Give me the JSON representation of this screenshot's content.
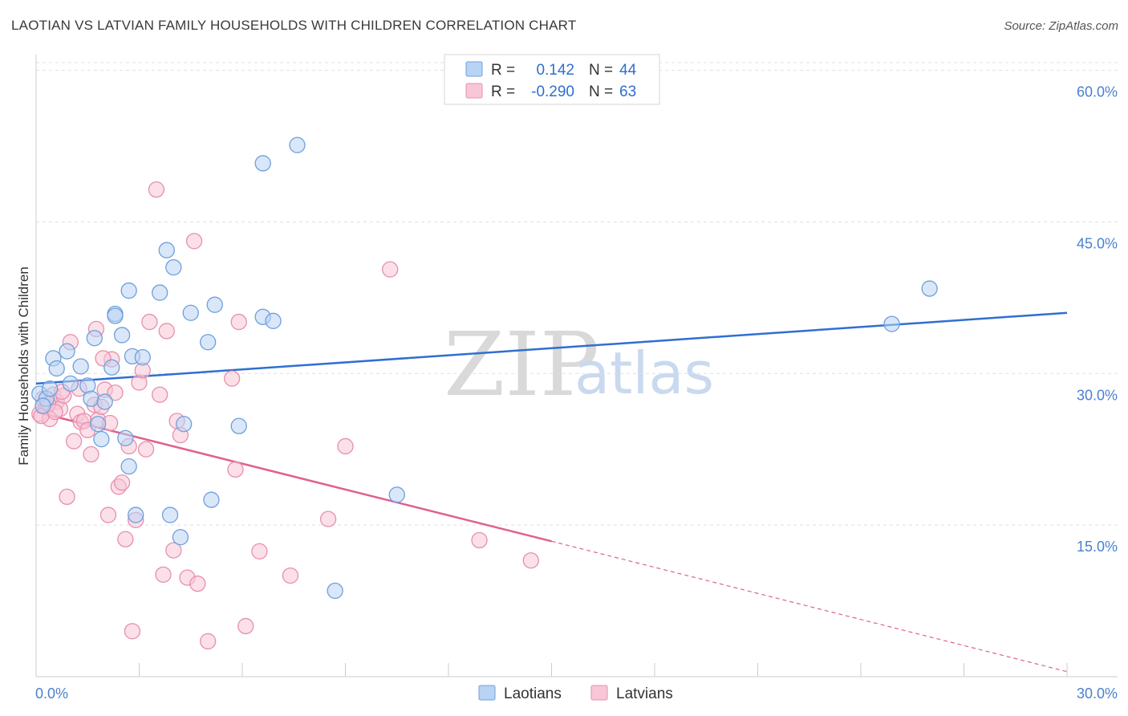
{
  "header": {
    "title": "LAOTIAN VS LATVIAN FAMILY HOUSEHOLDS WITH CHILDREN CORRELATION CHART",
    "source": "Source: ZipAtlas.com"
  },
  "legend": {
    "rows": [
      {
        "r_label": "R =",
        "r_value": "0.142",
        "n_label": "N =",
        "n_value": "44"
      },
      {
        "r_label": "R =",
        "r_value": "-0.290",
        "n_label": "N =",
        "n_value": "63"
      }
    ]
  },
  "bottom_legend": [
    "Laotians",
    "Latvians"
  ],
  "watermark": {
    "zip": "ZIP",
    "atlas": "atlas"
  },
  "colors": {
    "laotians_fill": "#b9d3f4",
    "laotians_stroke": "#6f9fdc",
    "laotians_line": "#2f6fd0",
    "latvians_fill": "#f8c6d6",
    "latvians_stroke": "#e78fad",
    "latvians_line": "#e0608f",
    "tick_label": "#4a80d0",
    "grid": "#e0e0e0"
  },
  "chart_data": {
    "type": "scatter",
    "title": "LAOTIAN VS LATVIAN FAMILY HOUSEHOLDS WITH CHILDREN CORRELATION CHART",
    "xlabel": "",
    "ylabel": "Family Households with Children",
    "xlim": [
      0,
      30
    ],
    "ylim": [
      0,
      61
    ],
    "x_tick_labels": [
      "0.0%",
      "30.0%"
    ],
    "y_ticks": [
      15,
      30,
      45,
      60
    ],
    "y_tick_labels": [
      "15.0%",
      "30.0%",
      "45.0%",
      "60.0%"
    ],
    "grid": true,
    "legend_position": "top-center",
    "series": [
      {
        "name": "Laotians",
        "r": 0.142,
        "n": 44,
        "trend": {
          "x0": 0,
          "y0": 29.0,
          "x1": 30,
          "y1": 36.0
        },
        "points": [
          [
            0.1,
            28.0
          ],
          [
            0.3,
            27.5
          ],
          [
            0.4,
            28.5
          ],
          [
            0.5,
            31.5
          ],
          [
            0.6,
            30.5
          ],
          [
            0.9,
            32.2
          ],
          [
            1.0,
            29.0
          ],
          [
            1.3,
            30.7
          ],
          [
            1.5,
            28.8
          ],
          [
            1.6,
            27.5
          ],
          [
            1.7,
            33.5
          ],
          [
            1.8,
            25.0
          ],
          [
            1.9,
            23.5
          ],
          [
            2.0,
            27.2
          ],
          [
            2.2,
            30.6
          ],
          [
            2.3,
            35.9
          ],
          [
            2.3,
            35.7
          ],
          [
            2.5,
            33.8
          ],
          [
            2.6,
            23.6
          ],
          [
            2.7,
            20.8
          ],
          [
            2.7,
            38.2
          ],
          [
            2.8,
            31.7
          ],
          [
            2.9,
            16.0
          ],
          [
            3.1,
            31.6
          ],
          [
            3.6,
            38.0
          ],
          [
            3.8,
            42.2
          ],
          [
            3.9,
            16.0
          ],
          [
            4.0,
            40.5
          ],
          [
            4.2,
            13.8
          ],
          [
            4.3,
            25.0
          ],
          [
            4.5,
            36.0
          ],
          [
            5.0,
            33.1
          ],
          [
            5.1,
            17.5
          ],
          [
            5.2,
            36.8
          ],
          [
            5.9,
            24.8
          ],
          [
            6.6,
            35.6
          ],
          [
            6.6,
            50.8
          ],
          [
            6.9,
            35.2
          ],
          [
            7.6,
            52.6
          ],
          [
            8.7,
            8.5
          ],
          [
            10.5,
            18.0
          ],
          [
            24.9,
            34.9
          ],
          [
            26.0,
            38.4
          ],
          [
            0.2,
            26.8
          ]
        ]
      },
      {
        "name": "Latvians",
        "r": -0.29,
        "n": 63,
        "trend": {
          "x0": 0,
          "y0": 26.2,
          "x1": 15,
          "y1": 13.4
        },
        "trend_dashed_to": {
          "x": 30,
          "y": 0.5
        },
        "points": [
          [
            0.1,
            26.0
          ],
          [
            0.2,
            27.5
          ],
          [
            0.3,
            26.7
          ],
          [
            0.4,
            25.5
          ],
          [
            0.5,
            27.9
          ],
          [
            0.6,
            27.2
          ],
          [
            0.7,
            26.5
          ],
          [
            0.8,
            27.8
          ],
          [
            0.9,
            17.8
          ],
          [
            1.0,
            33.1
          ],
          [
            1.1,
            23.3
          ],
          [
            1.2,
            26.0
          ],
          [
            1.3,
            25.2
          ],
          [
            1.4,
            25.3
          ],
          [
            1.5,
            24.4
          ],
          [
            1.6,
            22.0
          ],
          [
            1.7,
            26.9
          ],
          [
            1.8,
            25.4
          ],
          [
            1.9,
            26.7
          ],
          [
            2.0,
            28.4
          ],
          [
            2.1,
            16.0
          ],
          [
            2.2,
            31.4
          ],
          [
            2.3,
            28.1
          ],
          [
            2.4,
            18.8
          ],
          [
            2.5,
            19.2
          ],
          [
            2.6,
            13.6
          ],
          [
            2.7,
            22.8
          ],
          [
            2.8,
            4.5
          ],
          [
            2.9,
            15.5
          ],
          [
            3.0,
            29.1
          ],
          [
            3.1,
            30.3
          ],
          [
            3.2,
            22.5
          ],
          [
            3.3,
            35.1
          ],
          [
            3.5,
            48.2
          ],
          [
            3.6,
            27.9
          ],
          [
            3.7,
            10.1
          ],
          [
            3.8,
            34.2
          ],
          [
            4.0,
            12.5
          ],
          [
            4.1,
            25.3
          ],
          [
            4.2,
            23.9
          ],
          [
            4.4,
            9.8
          ],
          [
            4.6,
            43.1
          ],
          [
            4.7,
            9.2
          ],
          [
            5.0,
            3.5
          ],
          [
            5.7,
            29.5
          ],
          [
            5.8,
            20.5
          ],
          [
            5.9,
            35.1
          ],
          [
            6.1,
            5.0
          ],
          [
            6.5,
            12.4
          ],
          [
            7.4,
            10.0
          ],
          [
            8.5,
            15.6
          ],
          [
            9.0,
            22.8
          ],
          [
            10.3,
            40.3
          ],
          [
            12.9,
            13.5
          ],
          [
            14.4,
            11.5
          ],
          [
            0.15,
            25.8
          ],
          [
            0.35,
            27.0
          ],
          [
            0.55,
            26.2
          ],
          [
            0.75,
            28.2
          ],
          [
            1.25,
            28.5
          ],
          [
            1.75,
            34.4
          ],
          [
            1.95,
            31.5
          ],
          [
            2.15,
            25.1
          ]
        ]
      }
    ]
  }
}
